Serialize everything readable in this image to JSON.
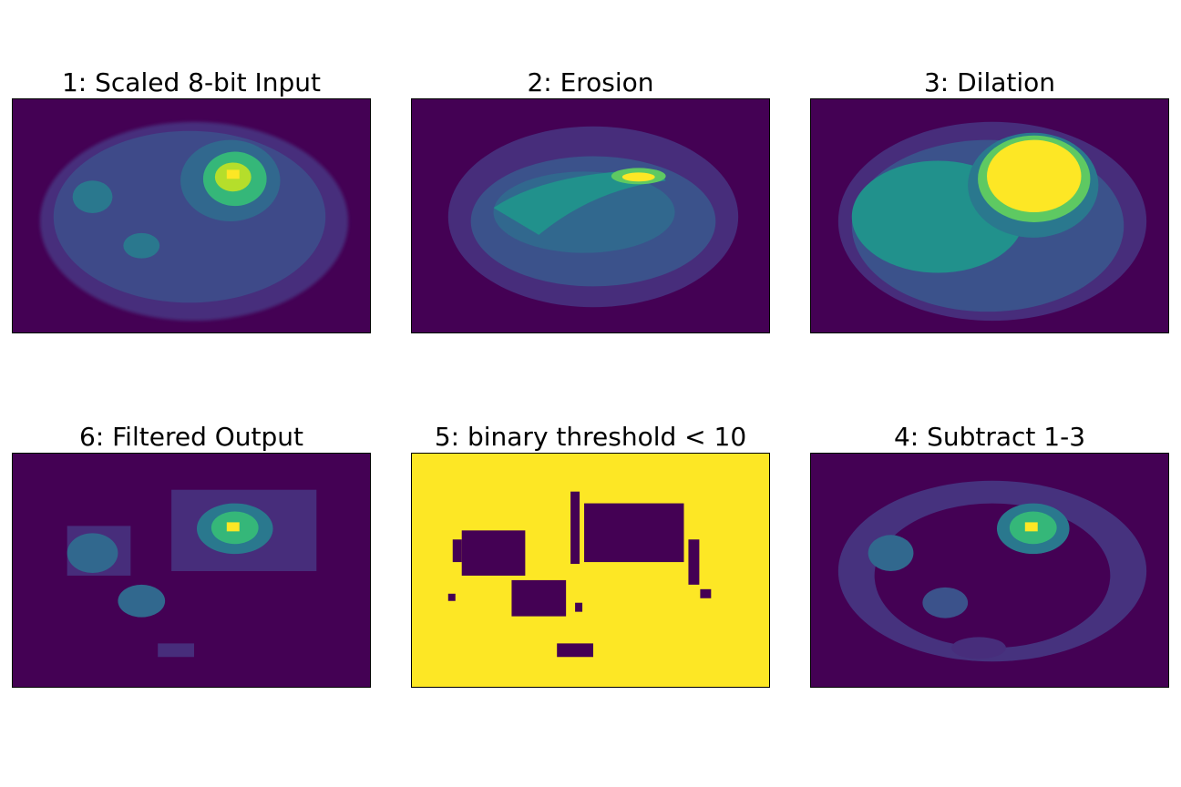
{
  "figure": {
    "panels": [
      {
        "id": "p1",
        "title": "1: Scaled 8-bit Input",
        "colormap": "viridis"
      },
      {
        "id": "p2",
        "title": "2: Erosion",
        "colormap": "viridis"
      },
      {
        "id": "p3",
        "title": "3: Dilation",
        "colormap": "viridis"
      },
      {
        "id": "p6",
        "title": "6: Filtered Output",
        "colormap": "viridis"
      },
      {
        "id": "p5",
        "title": "5: binary threshold < 10",
        "colormap": "viridis"
      },
      {
        "id": "p4",
        "title": "4: Subtract 1-3",
        "colormap": "viridis"
      }
    ]
  },
  "colors": {
    "viridis_dark": "#440154",
    "viridis_blue": "#3b528b",
    "viridis_teal": "#21918c",
    "viridis_green": "#5ec962",
    "viridis_yellow": "#fde725"
  }
}
